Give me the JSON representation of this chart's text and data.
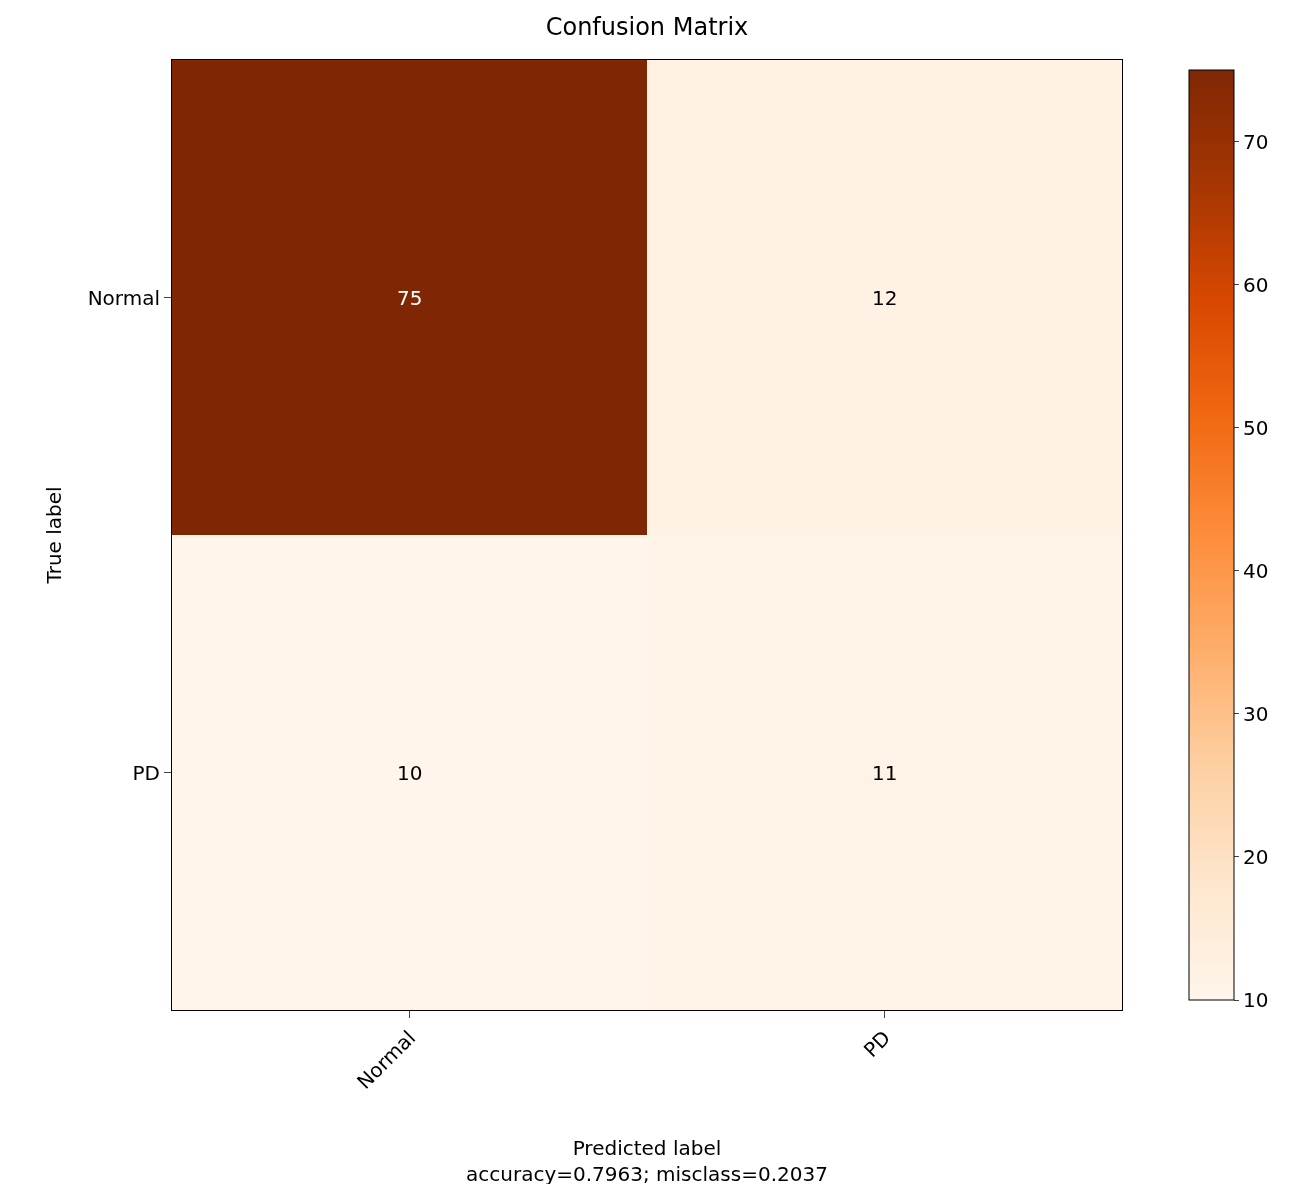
{
  "chart_data": {
    "type": "heatmap",
    "title": "Confusion Matrix",
    "xlabel": "Predicted label",
    "ylabel": "True label",
    "annotations": [
      "accuracy=0.7963; misclass=0.2037"
    ],
    "categories": [
      "Normal",
      "PD"
    ],
    "y_categories": [
      "Normal",
      "PD"
    ],
    "cells": [
      [
        75,
        12
      ],
      [
        10,
        11
      ]
    ],
    "clim": [
      10,
      75
    ],
    "cticks": [
      10,
      20,
      30,
      40,
      50,
      60,
      70
    ],
    "data_labels": true
  }
}
